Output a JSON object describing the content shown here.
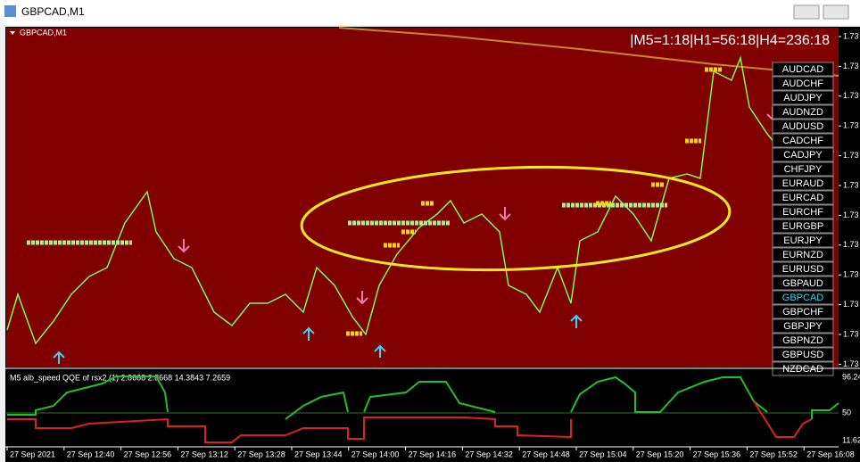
{
  "window": {
    "title": "GBPCAD,M1"
  },
  "chart": {
    "label": "GBPCAD,M1",
    "timeframes": "|M5=1:18|H1=56:18|H4=236:18",
    "price_labels": [
      "1.73",
      "1.73",
      "1.73",
      "1.73",
      "1.73",
      "1.73",
      "1.73",
      "1.73",
      "1.73",
      "1.73",
      "1.73",
      "1.73"
    ],
    "symbols": [
      "AUDCAD",
      "AUDCHF",
      "AUDJPY",
      "AUDNZD",
      "AUDUSD",
      "CADCHF",
      "CADJPY",
      "CHFJPY",
      "EURAUD",
      "EURCAD",
      "EURCHF",
      "EURGBP",
      "EURJPY",
      "EURNZD",
      "EURUSD",
      "GBPAUD",
      "GBPCAD",
      "GBPCHF",
      "GBPJPY",
      "GBPNZD",
      "GBPUSD",
      "NZDCAD"
    ],
    "active_symbol": 16
  },
  "indicator": {
    "label": "M5 alb_speed QQE of rsx2 (1) 2.8668 2.8668 14.3843 7.2659",
    "axis_labels": [
      "96.24",
      "50",
      "11.62"
    ]
  },
  "time_axis": [
    "27 Sep 2021",
    "27 Sep 12:40",
    "27 Sep 12:56",
    "27 Sep 13:12",
    "27 Sep 13:28",
    "27 Sep 13:44",
    "27 Sep 14:00",
    "27 Sep 14:16",
    "27 Sep 14:32",
    "27 Sep 14:48",
    "27 Sep 15:04",
    "27 Sep 15:20",
    "27 Sep 15:36",
    "27 Sep 15:52",
    "27 Sep 16:08"
  ]
}
